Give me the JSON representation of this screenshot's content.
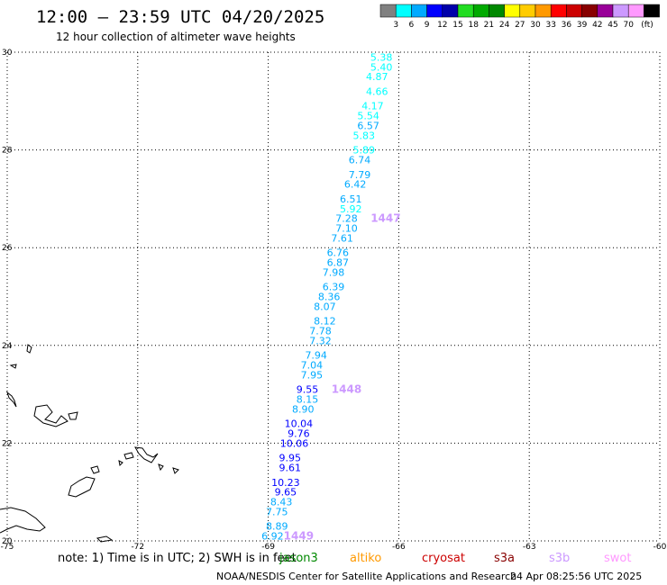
{
  "header": {
    "title": "12:00 — 23:59 UTC 04/20/2025",
    "subtitle": "12 hour collection of altimeter wave heights"
  },
  "colorbar": {
    "unit": "(ft)",
    "colors": [
      "#808080",
      "#00ffff",
      "#00aaff",
      "#0000ff",
      "#0000aa",
      "#22dd22",
      "#00aa00",
      "#008800",
      "#ffff00",
      "#ffcc00",
      "#ff9900",
      "#ff0000",
      "#cc0000",
      "#880000",
      "#990099",
      "#cc99ff",
      "#ff99ff",
      "#000000"
    ],
    "labels": [
      "3",
      "6",
      "9",
      "12",
      "15",
      "18",
      "21",
      "24",
      "27",
      "30",
      "33",
      "36",
      "39",
      "42",
      "45",
      "70"
    ]
  },
  "notes": {
    "prefix": "note:  1) Time is in UTC; 2) SWH is in feet",
    "missions": [
      {
        "name": "jason3",
        "color": "#008800"
      },
      {
        "name": "altiko",
        "color": "#ff9900"
      },
      {
        "name": "cryosat",
        "color": "#cc0000"
      },
      {
        "name": "s3a",
        "color": "#880000"
      },
      {
        "name": "s3b",
        "color": "#cc99ff"
      },
      {
        "name": "swot",
        "color": "#ff99ff"
      }
    ]
  },
  "footer": {
    "credit": "NOAA/NESDIS Center for Satellite Applications and Research",
    "timestamp": "24 Apr 08:25:56 UTC 2025"
  },
  "chart_data": {
    "type": "scatter",
    "title": "12:00 — 23:59 UTC 04/20/2025",
    "subtitle": "12 hour collection of altimeter wave heights",
    "xlim": [
      -75,
      -60
    ],
    "ylim": [
      20,
      30
    ],
    "x_ticks": [
      "-75",
      "-72",
      "-69",
      "-66",
      "-63",
      "-60"
    ],
    "y_ticks": [
      "20",
      "22",
      "24",
      "26",
      "28",
      "30"
    ],
    "grid": true,
    "series": [
      {
        "name": "s3b",
        "color_scale": "colorbar",
        "points": [
          {
            "lon": -66.4,
            "lat": 29.9,
            "label": "5.38"
          },
          {
            "lon": -66.4,
            "lat": 29.7,
            "label": "5.40"
          },
          {
            "lon": -66.5,
            "lat": 29.5,
            "label": "4.87"
          },
          {
            "lon": -66.5,
            "lat": 29.2,
            "label": "4.66"
          },
          {
            "lon": -66.6,
            "lat": 28.9,
            "label": "4.17"
          },
          {
            "lon": -66.7,
            "lat": 28.7,
            "label": "5.54"
          },
          {
            "lon": -66.7,
            "lat": 28.5,
            "label": "6.57"
          },
          {
            "lon": -66.8,
            "lat": 28.3,
            "label": "5.83"
          },
          {
            "lon": -66.8,
            "lat": 28.0,
            "label": "5.89"
          },
          {
            "lon": -66.9,
            "lat": 27.8,
            "label": "6.74"
          },
          {
            "lon": -66.9,
            "lat": 27.5,
            "label": "7.79"
          },
          {
            "lon": -67.0,
            "lat": 27.3,
            "label": "6.42"
          },
          {
            "lon": -67.1,
            "lat": 27.0,
            "label": "6.51"
          },
          {
            "lon": -67.1,
            "lat": 26.8,
            "label": "5.92"
          },
          {
            "lon": -67.2,
            "lat": 26.6,
            "label": "7.28"
          },
          {
            "lon": -67.2,
            "lat": 26.4,
            "label": "7.10"
          },
          {
            "lon": -67.3,
            "lat": 26.2,
            "label": "7.61"
          },
          {
            "lon": -67.4,
            "lat": 25.9,
            "label": "6.76"
          },
          {
            "lon": -67.4,
            "lat": 25.7,
            "label": "6.87"
          },
          {
            "lon": -67.5,
            "lat": 25.5,
            "label": "7.98"
          },
          {
            "lon": -67.5,
            "lat": 25.2,
            "label": "6.39"
          },
          {
            "lon": -67.6,
            "lat": 25.0,
            "label": "8.36"
          },
          {
            "lon": -67.7,
            "lat": 24.8,
            "label": "8.07"
          },
          {
            "lon": -67.7,
            "lat": 24.5,
            "label": "8.12"
          },
          {
            "lon": -67.8,
            "lat": 24.3,
            "label": "7.78"
          },
          {
            "lon": -67.8,
            "lat": 24.1,
            "label": "7.32"
          },
          {
            "lon": -67.9,
            "lat": 23.8,
            "label": "7.94"
          },
          {
            "lon": -68.0,
            "lat": 23.6,
            "label": "7.04"
          },
          {
            "lon": -68.0,
            "lat": 23.4,
            "label": "7.95"
          },
          {
            "lon": -68.1,
            "lat": 23.1,
            "label": "9.55"
          },
          {
            "lon": -68.1,
            "lat": 22.9,
            "label": "8.15"
          },
          {
            "lon": -68.2,
            "lat": 22.7,
            "label": "8.90"
          },
          {
            "lon": -68.3,
            "lat": 22.4,
            "label": "10.04"
          },
          {
            "lon": -68.3,
            "lat": 22.2,
            "label": "9.76"
          },
          {
            "lon": -68.4,
            "lat": 22.0,
            "label": "10.06"
          },
          {
            "lon": -68.5,
            "lat": 21.7,
            "label": "9.95"
          },
          {
            "lon": -68.5,
            "lat": 21.5,
            "label": "9.61"
          },
          {
            "lon": -68.6,
            "lat": 21.2,
            "label": "10.23"
          },
          {
            "lon": -68.6,
            "lat": 21.0,
            "label": "9.65"
          },
          {
            "lon": -68.7,
            "lat": 20.8,
            "label": "8.43"
          },
          {
            "lon": -68.8,
            "lat": 20.6,
            "label": "7.75"
          },
          {
            "lon": -68.8,
            "lat": 20.3,
            "label": "8.89"
          },
          {
            "lon": -68.9,
            "lat": 20.1,
            "label": "6.92"
          }
        ],
        "time_labels": [
          {
            "lon": -66.3,
            "lat": 26.6,
            "label": "1447"
          },
          {
            "lon": -67.2,
            "lat": 23.1,
            "label": "1448"
          },
          {
            "lon": -68.3,
            "lat": 20.1,
            "label": "1449"
          }
        ]
      }
    ]
  }
}
